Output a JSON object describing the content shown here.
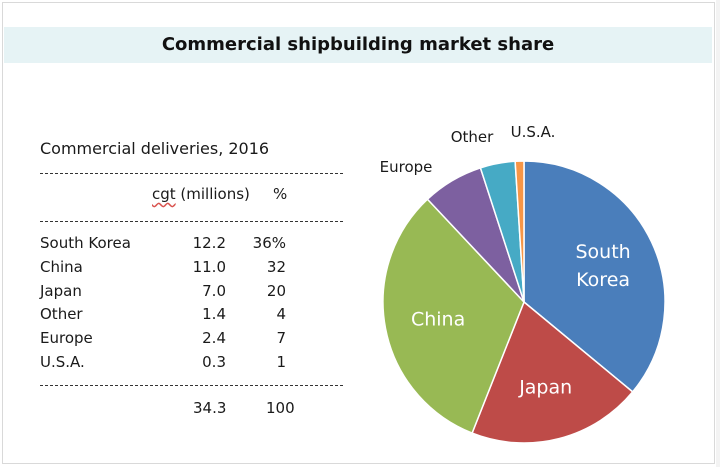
{
  "title": "Commercial shipbuilding market share",
  "table": {
    "caption": "Commercial deliveries, 2016",
    "col_cgt": "cgt (millions)",
    "col_cgt_word": "cgt",
    "col_cgt_rest": " (millions)",
    "col_pct": "%",
    "rows": [
      {
        "name": "South Korea",
        "cgt": "12.2",
        "pct": "36%"
      },
      {
        "name": "China",
        "cgt": "11.0",
        "pct": "32"
      },
      {
        "name": "Japan",
        "cgt": "7.0",
        "pct": "20"
      },
      {
        "name": "Other",
        "cgt": "1.4",
        "pct": "4"
      },
      {
        "name": "Europe",
        "cgt": "2.4",
        "pct": "7"
      },
      {
        "name": "U.S.A.",
        "cgt": "0.3",
        "pct": "1"
      }
    ],
    "total_cgt": "34.3",
    "total_pct": "100"
  },
  "chart_data": {
    "type": "pie",
    "slices": [
      {
        "label": "South Korea",
        "label_lines": [
          "South",
          "Korea"
        ],
        "value": 36,
        "color": "#4a7ebb",
        "label_inside": true
      },
      {
        "label": "Japan",
        "label_lines": [
          "Japan"
        ],
        "value": 20,
        "color": "#be4b48",
        "label_inside": true
      },
      {
        "label": "China",
        "label_lines": [
          "China"
        ],
        "value": 32,
        "color": "#98b954",
        "label_inside": true
      },
      {
        "label": "Europe",
        "label_lines": [
          "Europe"
        ],
        "value": 7,
        "color": "#7d60a0",
        "label_inside": false
      },
      {
        "label": "Other",
        "label_lines": [
          "Other"
        ],
        "value": 4,
        "color": "#46aac5",
        "label_inside": false
      },
      {
        "label": "U.S.A.",
        "label_lines": [
          "U.S.A."
        ],
        "value": 1,
        "color": "#f79646",
        "label_inside": false
      }
    ]
  }
}
